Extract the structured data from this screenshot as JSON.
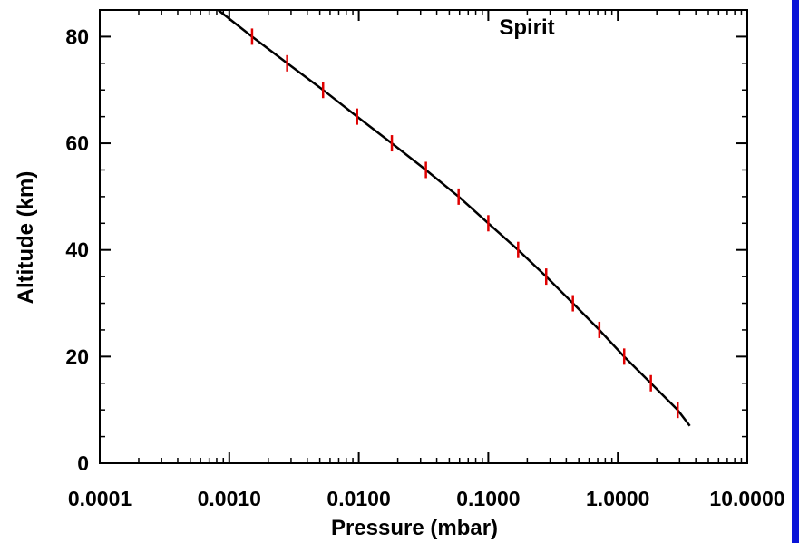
{
  "chart_data": {
    "type": "line",
    "xlabel": "Pressure (mbar)",
    "ylabel": "Altitude (km)",
    "annotation": "Spirit",
    "x_scale": "log",
    "xlim": [
      0.0001,
      10.0
    ],
    "ylim": [
      0,
      85
    ],
    "x_tick_labels": [
      "0.0001",
      "0.0010",
      "0.0100",
      "0.1000",
      "1.0000",
      "10.0000"
    ],
    "y_tick_labels": [
      "0",
      "20",
      "40",
      "60",
      "80"
    ],
    "grid": false,
    "series": [
      {
        "kind": "curve",
        "color": "#000000",
        "points": [
          {
            "x": 0.00082,
            "y": 85
          },
          {
            "x": 0.0015,
            "y": 80
          },
          {
            "x": 0.0028,
            "y": 75
          },
          {
            "x": 0.0053,
            "y": 70
          },
          {
            "x": 0.0097,
            "y": 65
          },
          {
            "x": 0.018,
            "y": 60
          },
          {
            "x": 0.033,
            "y": 55
          },
          {
            "x": 0.059,
            "y": 50
          },
          {
            "x": 0.1,
            "y": 45
          },
          {
            "x": 0.17,
            "y": 40
          },
          {
            "x": 0.28,
            "y": 35
          },
          {
            "x": 0.45,
            "y": 30
          },
          {
            "x": 0.72,
            "y": 25
          },
          {
            "x": 1.12,
            "y": 20
          },
          {
            "x": 1.8,
            "y": 15
          },
          {
            "x": 2.9,
            "y": 10
          },
          {
            "x": 3.6,
            "y": 7
          }
        ]
      },
      {
        "kind": "markers",
        "color": "#e00000",
        "points": [
          {
            "x": 0.0015,
            "y": 80
          },
          {
            "x": 0.0028,
            "y": 75
          },
          {
            "x": 0.0053,
            "y": 70
          },
          {
            "x": 0.0097,
            "y": 65
          },
          {
            "x": 0.018,
            "y": 60
          },
          {
            "x": 0.033,
            "y": 55
          },
          {
            "x": 0.059,
            "y": 50
          },
          {
            "x": 0.1,
            "y": 45
          },
          {
            "x": 0.17,
            "y": 40
          },
          {
            "x": 0.28,
            "y": 35
          },
          {
            "x": 0.45,
            "y": 30
          },
          {
            "x": 0.72,
            "y": 25
          },
          {
            "x": 1.12,
            "y": 20
          },
          {
            "x": 1.8,
            "y": 15
          },
          {
            "x": 2.9,
            "y": 10
          }
        ]
      }
    ]
  }
}
